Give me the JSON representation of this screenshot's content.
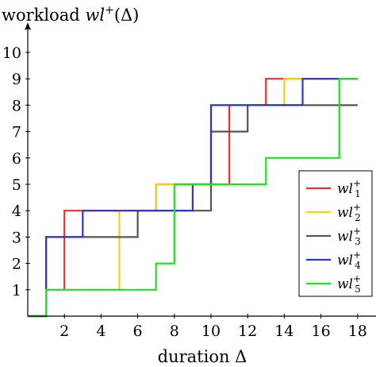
{
  "chart_data": {
    "type": "line",
    "step": true,
    "ylabel_prefix": "workload ",
    "ylabel_math": "wl",
    "ylabel_sup": "+",
    "ylabel_suffix": "(Δ)",
    "xlabel": "duration Δ",
    "xlim": [
      0,
      19.2
    ],
    "ylim": [
      0,
      10.9
    ],
    "x_ticks": [
      2,
      4,
      6,
      8,
      10,
      12,
      14,
      16,
      18
    ],
    "y_ticks": [
      1,
      2,
      3,
      4,
      5,
      6,
      7,
      8,
      9,
      10
    ],
    "grid": false,
    "legend_position": "right",
    "series": [
      {
        "name": "wl",
        "sup": "+",
        "sub": "1",
        "color": "#e8322a",
        "x": [
          0,
          1,
          1,
          2,
          2,
          7,
          7,
          11,
          11,
          13,
          13,
          18
        ],
        "y": [
          0,
          0,
          1,
          1,
          4,
          4,
          5,
          5,
          8,
          8,
          9,
          9
        ]
      },
      {
        "name": "wl",
        "sup": "+",
        "sub": "2",
        "color": "#f5d10a",
        "x": [
          0,
          1,
          1,
          5,
          5,
          7,
          7,
          10,
          10,
          14,
          14,
          18
        ],
        "y": [
          0,
          0,
          1,
          1,
          4,
          4,
          5,
          5,
          8,
          8,
          9,
          9
        ]
      },
      {
        "name": "wl",
        "sup": "+",
        "sub": "3",
        "color": "#555555",
        "x": [
          0,
          1,
          1,
          6,
          6,
          9,
          9,
          10,
          10,
          12,
          12,
          18
        ],
        "y": [
          0,
          0,
          3,
          3,
          4,
          4,
          4,
          4,
          7,
          7,
          8,
          8
        ]
      },
      {
        "name": "wl",
        "sup": "+",
        "sub": "4",
        "color": "#2e35c8",
        "x": [
          0,
          1,
          1,
          3,
          3,
          9,
          9,
          10,
          10,
          15,
          15,
          18
        ],
        "y": [
          0,
          0,
          3,
          3,
          4,
          4,
          5,
          5,
          8,
          8,
          9,
          9
        ]
      },
      {
        "name": "wl",
        "sup": "+",
        "sub": "5",
        "color": "#22e022",
        "x": [
          0,
          1,
          1,
          7,
          7,
          8,
          8,
          13,
          13,
          17,
          17,
          18
        ],
        "y": [
          0,
          0,
          1,
          1,
          2,
          2,
          5,
          5,
          6,
          6,
          9,
          9
        ]
      }
    ]
  }
}
